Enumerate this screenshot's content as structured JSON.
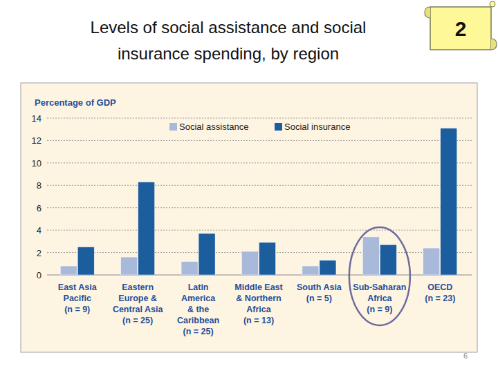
{
  "chart_data": {
    "type": "bar",
    "title": "Levels of social assistance and social\ninsurance spending, by region",
    "y_label": "Percentage of GDP",
    "categories": [
      "East Asia\nPacific\n(n = 9)",
      "Eastern\nEurope &\nCentral Asia\n(n = 25)",
      "Latin\nAmerica\n& the\nCaribbean\n(n = 25)",
      "Middle East\n& Northern\nAfrica\n(n = 13)",
      "South Asia\n(n = 5)",
      "Sub-Saharan\nAfrica\n(n = 9)",
      "OECD\n(n = 23)"
    ],
    "series": [
      {
        "name": "Social assistance",
        "color": "#a9b9d9",
        "values": [
          0.8,
          1.6,
          1.2,
          2.1,
          0.8,
          3.4,
          2.4
        ]
      },
      {
        "name": "Social insurance",
        "color": "#1c5d9e",
        "values": [
          2.5,
          8.3,
          3.7,
          2.9,
          1.3,
          2.7,
          13.1
        ]
      }
    ],
    "ylim": [
      0,
      14
    ],
    "yticks": [
      0,
      2,
      4,
      6,
      8,
      10,
      12,
      14
    ],
    "grid": true,
    "legend": "top"
  },
  "badge": "2",
  "page_number": "6"
}
